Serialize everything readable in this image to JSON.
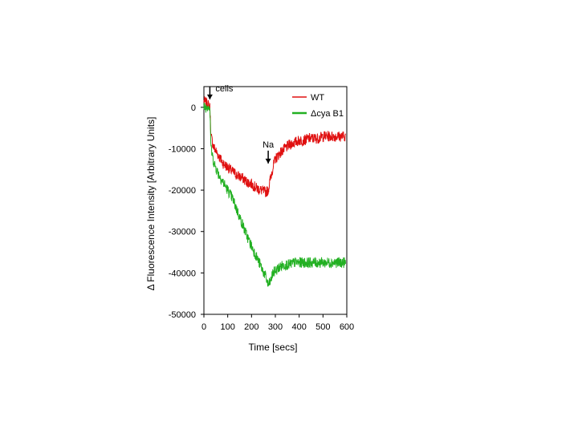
{
  "chart_data": {
    "type": "line",
    "title": "",
    "xlabel": "Time [secs]",
    "ylabel": "Δ Fluorescence Intensity [Arbitrary Units]",
    "xlim": [
      0,
      600
    ],
    "ylim": [
      -50000,
      5000
    ],
    "xticks": [
      0,
      100,
      200,
      300,
      400,
      500,
      600
    ],
    "yticks": [
      0,
      -10000,
      -20000,
      -30000,
      -40000,
      -50000
    ],
    "grid": false,
    "legend_position": "top-right",
    "series": [
      {
        "name": "WT",
        "color": "#e01010",
        "x": [
          0,
          10,
          20,
          25,
          30,
          40,
          60,
          80,
          100,
          120,
          140,
          160,
          180,
          200,
          220,
          240,
          260,
          270,
          280,
          290,
          300,
          320,
          340,
          360,
          380,
          400,
          420,
          440,
          460,
          480,
          500,
          520,
          540,
          560,
          580,
          595
        ],
        "y": [
          1500,
          1000,
          500,
          0,
          -7000,
          -9500,
          -11500,
          -13500,
          -14500,
          -15500,
          -16500,
          -17000,
          -18000,
          -18500,
          -19500,
          -20000,
          -20500,
          -20000,
          -17000,
          -14500,
          -12500,
          -11000,
          -10000,
          -9000,
          -8500,
          -8000,
          -8000,
          -7500,
          -7500,
          -7500,
          -7000,
          -7000,
          -7000,
          -7000,
          -7000,
          -7000
        ]
      },
      {
        "name": "Δcya B1",
        "color": "#22b022",
        "x": [
          0,
          10,
          20,
          25,
          30,
          40,
          60,
          80,
          100,
          120,
          140,
          160,
          180,
          200,
          220,
          240,
          260,
          270,
          280,
          290,
          300,
          320,
          340,
          360,
          380,
          400,
          420,
          440,
          460,
          480,
          500,
          520,
          540,
          560,
          580,
          595
        ],
        "y": [
          0,
          0,
          500,
          0,
          -10000,
          -13000,
          -16000,
          -18000,
          -20000,
          -22000,
          -25000,
          -28000,
          -31000,
          -33500,
          -36000,
          -38500,
          -41000,
          -43000,
          -42000,
          -40000,
          -39500,
          -38500,
          -38000,
          -38000,
          -37500,
          -37500,
          -37500,
          -37500,
          -37500,
          -37500,
          -37500,
          -37500,
          -37500,
          -37500,
          -37500,
          -37500
        ]
      }
    ],
    "annotations": [
      {
        "label": "cells",
        "x": 25,
        "y": 0
      },
      {
        "label": "Na",
        "x": 270,
        "y": -15500
      }
    ]
  }
}
